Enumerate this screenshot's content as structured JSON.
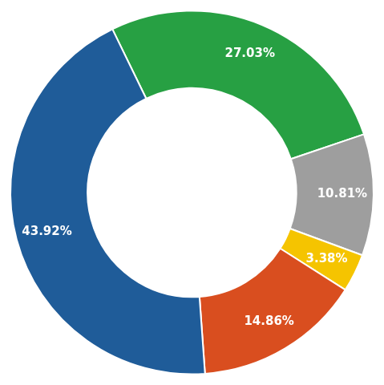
{
  "chart_data": {
    "type": "doughnut",
    "values": [
      27.03,
      10.81,
      3.38,
      14.86,
      43.92
    ],
    "value_labels": [
      "27.03%",
      "10.81%",
      "3.38%",
      "14.86%",
      "43.92%"
    ],
    "colors": [
      "#27A043",
      "#9E9E9E",
      "#F5C400",
      "#D94E1F",
      "#1F5C99"
    ],
    "data_labels": true
  }
}
